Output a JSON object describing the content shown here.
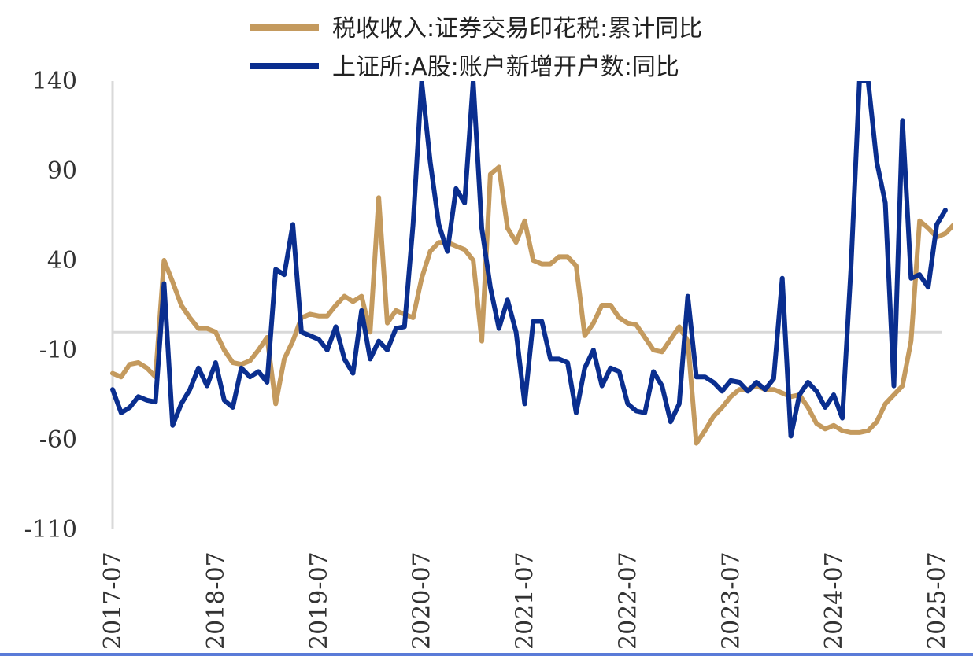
{
  "chart_data": {
    "type": "line",
    "title": "",
    "xlabel": "",
    "ylabel": "",
    "ylim": [
      -110,
      140
    ],
    "yticks": [
      140,
      90,
      40,
      -10,
      -60,
      -110
    ],
    "x_start": "2017-07",
    "x_end": "2025-07",
    "xticks": [
      "2017-07",
      "2018-07",
      "2019-07",
      "2020-07",
      "2021-07",
      "2022-07",
      "2023-07",
      "2024-07",
      "2025-07"
    ],
    "grid": false,
    "legend": "top-center",
    "series": [
      {
        "name": "税收收入:证券交易印花税:累计同比",
        "color": "#c49a5e",
        "points": [
          [
            "2017-07",
            -23
          ],
          [
            "2017-08",
            -25
          ],
          [
            "2017-09",
            -18
          ],
          [
            "2017-10",
            -17
          ],
          [
            "2017-11",
            -20
          ],
          [
            "2017-12",
            -25
          ],
          [
            "2018-01",
            40
          ],
          [
            "2018-02",
            28
          ],
          [
            "2018-03",
            15
          ],
          [
            "2018-04",
            8
          ],
          [
            "2018-05",
            2
          ],
          [
            "2018-06",
            2
          ],
          [
            "2018-07",
            0
          ],
          [
            "2018-08",
            -10
          ],
          [
            "2018-09",
            -17
          ],
          [
            "2018-10",
            -18
          ],
          [
            "2018-11",
            -16
          ],
          [
            "2018-12",
            -10
          ],
          [
            "2019-01",
            -3
          ],
          [
            "2019-02",
            -40
          ],
          [
            "2019-03",
            -15
          ],
          [
            "2019-04",
            -5
          ],
          [
            "2019-05",
            8
          ],
          [
            "2019-06",
            10
          ],
          [
            "2019-07",
            9
          ],
          [
            "2019-08",
            9
          ],
          [
            "2019-09",
            15
          ],
          [
            "2019-10",
            20
          ],
          [
            "2019-11",
            17
          ],
          [
            "2019-12",
            20
          ],
          [
            "2020-01",
            0
          ],
          [
            "2020-02",
            75
          ],
          [
            "2020-03",
            5
          ],
          [
            "2020-04",
            12
          ],
          [
            "2020-05",
            10
          ],
          [
            "2020-06",
            8
          ],
          [
            "2020-07",
            30
          ],
          [
            "2020-08",
            45
          ],
          [
            "2020-09",
            50
          ],
          [
            "2020-10",
            50
          ],
          [
            "2020-11",
            48
          ],
          [
            "2020-12",
            46
          ],
          [
            "2021-01",
            40
          ],
          [
            "2021-02",
            -5
          ],
          [
            "2021-03",
            88
          ],
          [
            "2021-04",
            92
          ],
          [
            "2021-05",
            58
          ],
          [
            "2021-06",
            50
          ],
          [
            "2021-07",
            62
          ],
          [
            "2021-08",
            40
          ],
          [
            "2021-09",
            38
          ],
          [
            "2021-10",
            38
          ],
          [
            "2021-11",
            42
          ],
          [
            "2021-12",
            42
          ],
          [
            "2022-01",
            37
          ],
          [
            "2022-02",
            -2
          ],
          [
            "2022-03",
            5
          ],
          [
            "2022-04",
            15
          ],
          [
            "2022-05",
            15
          ],
          [
            "2022-06",
            8
          ],
          [
            "2022-07",
            5
          ],
          [
            "2022-08",
            4
          ],
          [
            "2022-09",
            -3
          ],
          [
            "2022-10",
            -10
          ],
          [
            "2022-11",
            -11
          ],
          [
            "2022-12",
            -4
          ],
          [
            "2023-01",
            3
          ],
          [
            "2023-02",
            -5
          ],
          [
            "2023-03",
            -62
          ],
          [
            "2023-04",
            -55
          ],
          [
            "2023-05",
            -47
          ],
          [
            "2023-06",
            -42
          ],
          [
            "2023-07",
            -36
          ],
          [
            "2023-08",
            -32
          ],
          [
            "2023-09",
            -32
          ],
          [
            "2023-10",
            -30
          ],
          [
            "2023-11",
            -32
          ],
          [
            "2023-12",
            -32
          ],
          [
            "2024-01",
            -34
          ],
          [
            "2024-02",
            -36
          ],
          [
            "2024-03",
            -35
          ],
          [
            "2024-04",
            -42
          ],
          [
            "2024-05",
            -51
          ],
          [
            "2024-06",
            -54
          ],
          [
            "2024-07",
            -52
          ],
          [
            "2024-08",
            -55
          ],
          [
            "2024-09",
            -56
          ],
          [
            "2024-10",
            -56
          ],
          [
            "2024-11",
            -55
          ],
          [
            "2024-12",
            -50
          ],
          [
            "2025-01",
            -40
          ],
          [
            "2025-02",
            -35
          ],
          [
            "2025-03",
            -30
          ],
          [
            "2025-04",
            -5
          ],
          [
            "2025-05",
            62
          ],
          [
            "2025-06",
            58
          ],
          [
            "2025-07",
            53
          ],
          [
            "2025-08",
            55
          ],
          [
            "2025-09",
            60
          ]
        ]
      },
      {
        "name": "上证所:A股:账户新增开户数:同比",
        "color": "#0a2e8f",
        "points": [
          [
            "2017-07",
            -32
          ],
          [
            "2017-08",
            -45
          ],
          [
            "2017-09",
            -42
          ],
          [
            "2017-10",
            -36
          ],
          [
            "2017-11",
            -38
          ],
          [
            "2017-12",
            -39
          ],
          [
            "2018-01",
            27
          ],
          [
            "2018-02",
            -52
          ],
          [
            "2018-03",
            -40
          ],
          [
            "2018-04",
            -32
          ],
          [
            "2018-05",
            -20
          ],
          [
            "2018-06",
            -30
          ],
          [
            "2018-07",
            -17
          ],
          [
            "2018-08",
            -38
          ],
          [
            "2018-09",
            -42
          ],
          [
            "2018-10",
            -20
          ],
          [
            "2018-11",
            -25
          ],
          [
            "2018-12",
            -22
          ],
          [
            "2019-01",
            -28
          ],
          [
            "2019-02",
            35
          ],
          [
            "2019-03",
            32
          ],
          [
            "2019-04",
            60
          ],
          [
            "2019-05",
            0
          ],
          [
            "2019-06",
            -2
          ],
          [
            "2019-07",
            -4
          ],
          [
            "2019-08",
            -10
          ],
          [
            "2019-09",
            3
          ],
          [
            "2019-10",
            -15
          ],
          [
            "2019-11",
            -23
          ],
          [
            "2019-12",
            12
          ],
          [
            "2020-01",
            -15
          ],
          [
            "2020-02",
            -5
          ],
          [
            "2020-03",
            -10
          ],
          [
            "2020-04",
            2
          ],
          [
            "2020-05",
            3
          ],
          [
            "2020-06",
            60
          ],
          [
            "2020-07",
            140
          ],
          [
            "2020-08",
            95
          ],
          [
            "2020-09",
            60
          ],
          [
            "2020-10",
            45
          ],
          [
            "2020-11",
            80
          ],
          [
            "2020-12",
            72
          ],
          [
            "2021-01",
            140
          ],
          [
            "2021-02",
            58
          ],
          [
            "2021-03",
            25
          ],
          [
            "2021-04",
            2
          ],
          [
            "2021-05",
            18
          ],
          [
            "2021-06",
            0
          ],
          [
            "2021-07",
            -40
          ],
          [
            "2021-08",
            6
          ],
          [
            "2021-09",
            6
          ],
          [
            "2021-10",
            -15
          ],
          [
            "2021-11",
            -15
          ],
          [
            "2021-12",
            -17
          ],
          [
            "2022-01",
            -45
          ],
          [
            "2022-02",
            -20
          ],
          [
            "2022-03",
            -10
          ],
          [
            "2022-04",
            -30
          ],
          [
            "2022-05",
            -20
          ],
          [
            "2022-06",
            -22
          ],
          [
            "2022-07",
            -40
          ],
          [
            "2022-08",
            -44
          ],
          [
            "2022-09",
            -45
          ],
          [
            "2022-10",
            -22
          ],
          [
            "2022-11",
            -30
          ],
          [
            "2022-12",
            -50
          ],
          [
            "2023-01",
            -40
          ],
          [
            "2023-02",
            20
          ],
          [
            "2023-03",
            -25
          ],
          [
            "2023-04",
            -25
          ],
          [
            "2023-05",
            -28
          ],
          [
            "2023-06",
            -33
          ],
          [
            "2023-07",
            -27
          ],
          [
            "2023-08",
            -28
          ],
          [
            "2023-09",
            -33
          ],
          [
            "2023-10",
            -28
          ],
          [
            "2023-11",
            -32
          ],
          [
            "2023-12",
            -26
          ],
          [
            "2024-01",
            30
          ],
          [
            "2024-02",
            -58
          ],
          [
            "2024-03",
            -35
          ],
          [
            "2024-04",
            -28
          ],
          [
            "2024-05",
            -33
          ],
          [
            "2024-06",
            -42
          ],
          [
            "2024-07",
            -35
          ],
          [
            "2024-08",
            -48
          ],
          [
            "2024-09",
            35
          ],
          [
            "2024-10",
            140
          ],
          [
            "2024-11",
            140
          ],
          [
            "2024-12",
            95
          ],
          [
            "2025-01",
            72
          ],
          [
            "2025-02",
            -30
          ],
          [
            "2025-03",
            118
          ],
          [
            "2025-04",
            30
          ],
          [
            "2025-05",
            32
          ],
          [
            "2025-06",
            25
          ],
          [
            "2025-07",
            60
          ],
          [
            "2025-08",
            68
          ]
        ]
      }
    ]
  }
}
